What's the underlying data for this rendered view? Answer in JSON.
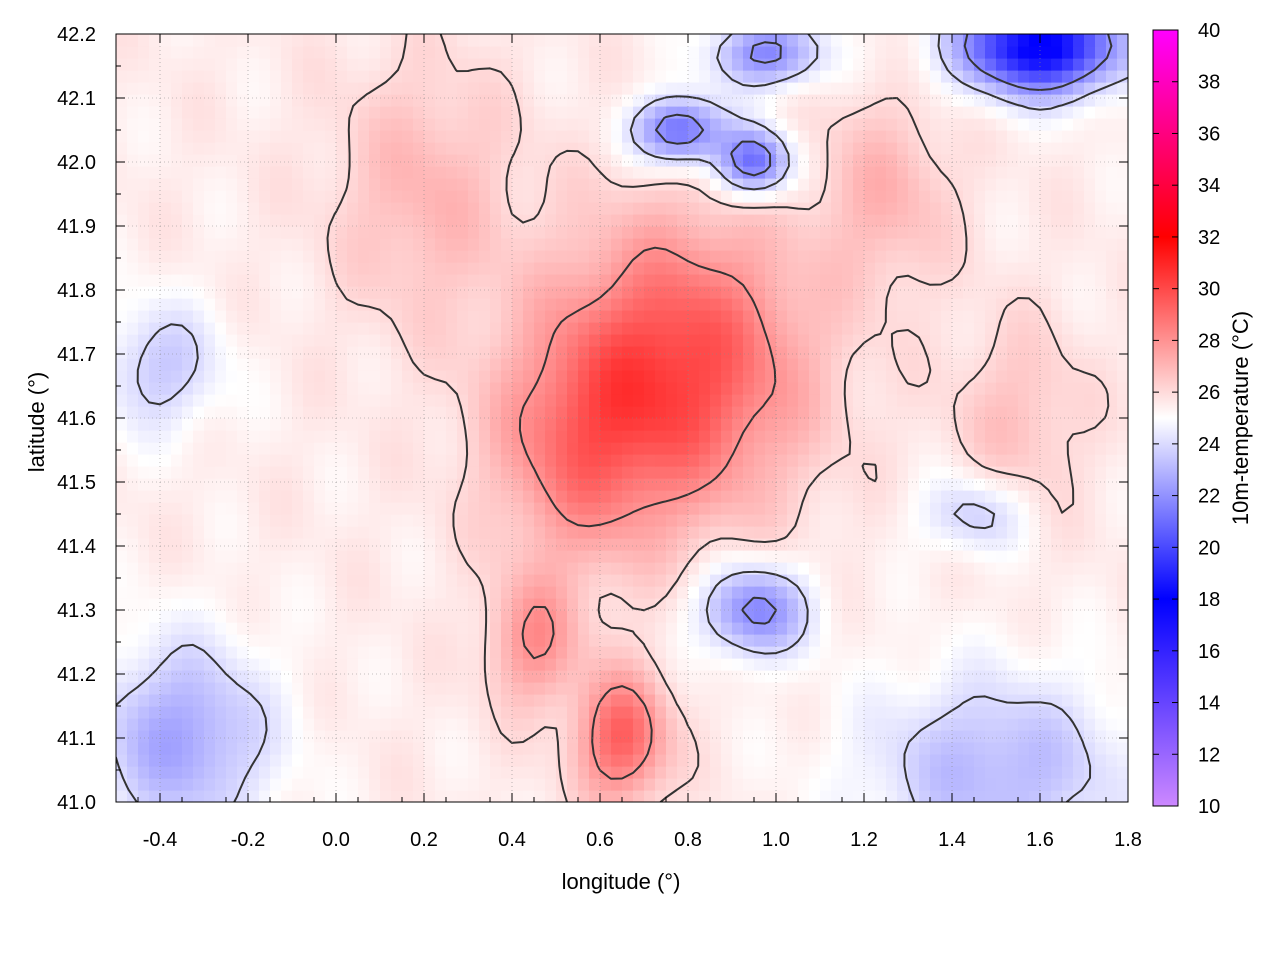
{
  "chart_data": {
    "type": "heatmap",
    "title": "",
    "xlabel": "longitude (°)",
    "ylabel": "latitude (°)",
    "colorbar_label": "10m-temperature (°C)",
    "xlim": [
      -0.5,
      1.8
    ],
    "ylim": [
      41.0,
      42.2
    ],
    "x_ticks": [
      "-0.4",
      "-0.2",
      "0.0",
      "0.2",
      "0.4",
      "0.6",
      "0.8",
      "1.0",
      "1.2",
      "1.4",
      "1.6",
      "1.8"
    ],
    "x_tick_values": [
      -0.4,
      -0.2,
      0.0,
      0.2,
      0.4,
      0.6,
      0.8,
      1.0,
      1.2,
      1.4,
      1.6,
      1.8
    ],
    "y_ticks": [
      "41.0",
      "41.1",
      "41.2",
      "41.3",
      "41.4",
      "41.5",
      "41.6",
      "41.7",
      "41.8",
      "41.9",
      "42.0",
      "42.1",
      "42.2"
    ],
    "y_tick_values": [
      41.0,
      41.1,
      41.2,
      41.3,
      41.4,
      41.5,
      41.6,
      41.7,
      41.8,
      41.9,
      42.0,
      42.1,
      42.2
    ],
    "colorbar_range": [
      10,
      40
    ],
    "colorbar_ticks": [
      "10",
      "12",
      "14",
      "16",
      "18",
      "20",
      "22",
      "24",
      "26",
      "28",
      "30",
      "32",
      "34",
      "36",
      "38",
      "40"
    ],
    "colorbar_tick_values": [
      10,
      12,
      14,
      16,
      18,
      20,
      22,
      24,
      26,
      28,
      30,
      32,
      34,
      36,
      38,
      40
    ],
    "colormap_stops": [
      {
        "value": 10,
        "color": "#cc88ff"
      },
      {
        "value": 18,
        "color": "#0000ff"
      },
      {
        "value": 25,
        "color": "#ffffff"
      },
      {
        "value": 32,
        "color": "#ff0000"
      },
      {
        "value": 40,
        "color": "#ff00ff"
      }
    ],
    "grid": true,
    "contours": true,
    "approx_field": {
      "background": 25.5,
      "features": [
        {
          "lon": 0.78,
          "lat": 41.68,
          "value": 4.5,
          "sx": 0.28,
          "sy": 0.22
        },
        {
          "lon": 0.55,
          "lat": 41.55,
          "value": 2.5,
          "sx": 0.2,
          "sy": 0.18
        },
        {
          "lon": 0.65,
          "lat": 41.1,
          "value": 4.0,
          "sx": 0.1,
          "sy": 0.1
        },
        {
          "lon": 0.45,
          "lat": 41.25,
          "value": 2.5,
          "sx": 0.1,
          "sy": 0.1
        },
        {
          "lon": 0.2,
          "lat": 41.95,
          "value": 1.5,
          "sx": 0.2,
          "sy": 0.2
        },
        {
          "lon": 1.25,
          "lat": 41.95,
          "value": 1.5,
          "sx": 0.15,
          "sy": 0.15
        },
        {
          "lon": 1.55,
          "lat": 41.6,
          "value": 1.2,
          "sx": 0.15,
          "sy": 0.15
        },
        {
          "lon": 1.6,
          "lat": 42.18,
          "value": -8.0,
          "sx": 0.18,
          "sy": 0.07
        },
        {
          "lon": 0.78,
          "lat": 42.05,
          "value": -5.0,
          "sx": 0.1,
          "sy": 0.05
        },
        {
          "lon": 0.95,
          "lat": 42.0,
          "value": -5.0,
          "sx": 0.08,
          "sy": 0.05
        },
        {
          "lon": 0.98,
          "lat": 42.17,
          "value": -4.0,
          "sx": 0.12,
          "sy": 0.05
        },
        {
          "lon": 0.95,
          "lat": 41.3,
          "value": -4.0,
          "sx": 0.12,
          "sy": 0.07
        },
        {
          "lon": 1.5,
          "lat": 41.05,
          "value": -2.5,
          "sx": 0.3,
          "sy": 0.15
        },
        {
          "lon": -0.35,
          "lat": 41.1,
          "value": -3.0,
          "sx": 0.2,
          "sy": 0.15
        },
        {
          "lon": -0.4,
          "lat": 41.68,
          "value": -2.0,
          "sx": 0.14,
          "sy": 0.1
        },
        {
          "lon": 1.45,
          "lat": 41.45,
          "value": -2.0,
          "sx": 0.12,
          "sy": 0.06
        }
      ]
    }
  }
}
